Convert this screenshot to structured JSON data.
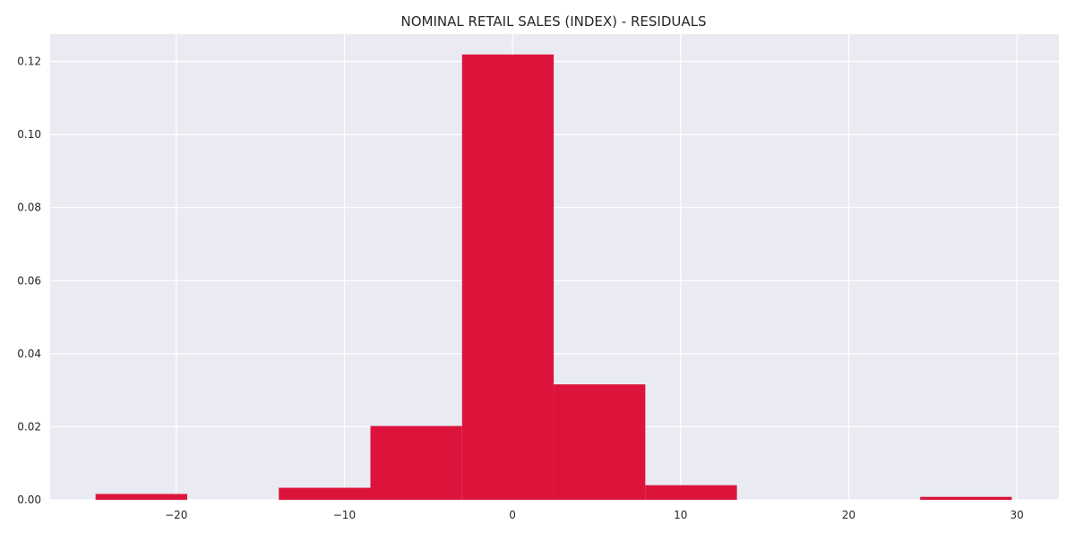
{
  "chart_data": {
    "type": "bar",
    "title": "NOMINAL RETAIL SALES (INDEX) - RESIDUALS",
    "xlabel": "",
    "ylabel": "",
    "xlim": [
      -27.5,
      32.5
    ],
    "ylim": [
      0,
      0.1275
    ],
    "x_ticks": [
      -20,
      -10,
      0,
      10,
      20,
      30
    ],
    "x_tick_labels": [
      "−20",
      "−10",
      "0",
      "10",
      "20",
      "30"
    ],
    "y_ticks": [
      0.0,
      0.02,
      0.04,
      0.06,
      0.08,
      0.1,
      0.12
    ],
    "y_tick_labels": [
      "0.00",
      "0.02",
      "0.04",
      "0.06",
      "0.08",
      "0.10",
      "0.12"
    ],
    "grid": true,
    "bar_color": "#dc143c",
    "background_color": "#eaeaf2",
    "bins": [
      {
        "x0": -24.8,
        "x1": -19.35,
        "value": 0.0016
      },
      {
        "x0": -19.35,
        "x1": -13.9,
        "value": 0.0
      },
      {
        "x0": -13.9,
        "x1": -8.45,
        "value": 0.0033
      },
      {
        "x0": -8.45,
        "x1": -3.0,
        "value": 0.0202
      },
      {
        "x0": -3.0,
        "x1": 2.45,
        "value": 0.1219
      },
      {
        "x0": 2.45,
        "x1": 7.9,
        "value": 0.0316
      },
      {
        "x0": 7.9,
        "x1": 13.35,
        "value": 0.004
      },
      {
        "x0": 13.35,
        "x1": 18.8,
        "value": 0.0
      },
      {
        "x0": 18.8,
        "x1": 24.25,
        "value": 0.0
      },
      {
        "x0": 24.25,
        "x1": 29.7,
        "value": 0.0008
      }
    ]
  }
}
